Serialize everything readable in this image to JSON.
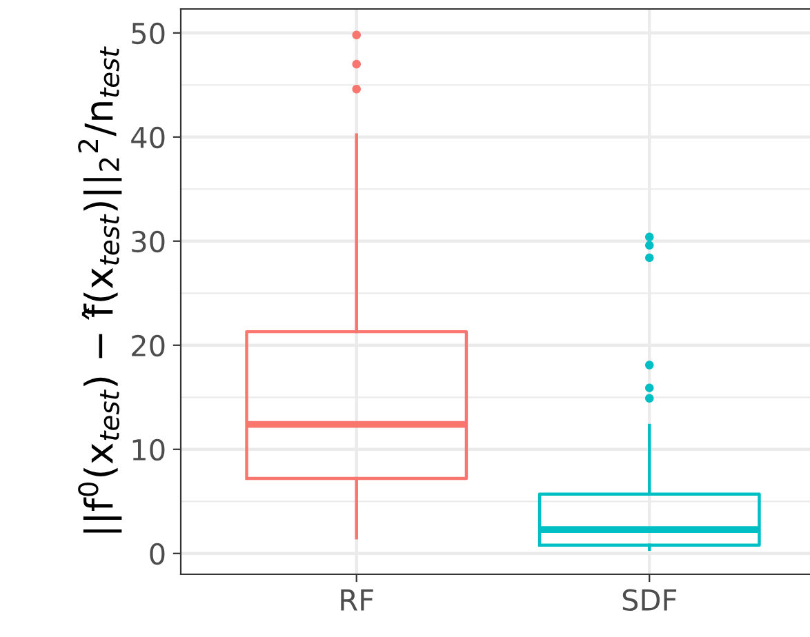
{
  "chart_data": {
    "type": "box",
    "ylabel": "||f$^{0}$(x$_{test}$) − f̂(x$_{test}$)||$_{2}$$^{2}$/n$_{test}$",
    "categories": [
      "RF",
      "SDF"
    ],
    "series": [
      {
        "color": "#f8766d",
        "boxes": [
          {
            "low": 1.5,
            "q1": 7.2,
            "median": 12.4,
            "q3": 21.3,
            "high": 40.2,
            "outliers": [
              44.6,
              47.0,
              49.8
            ]
          },
          null
        ]
      },
      {
        "color": "#00bfc4",
        "boxes": [
          null,
          {
            "low": 0.4,
            "q1": 0.8,
            "median": 2.3,
            "q3": 5.7,
            "high": 12.3,
            "outliers": [
              14.9,
              15.9,
              18.1,
              28.4,
              29.6,
              30.4
            ]
          }
        ]
      }
    ],
    "ylim": [
      -2,
      52.3
    ],
    "yticks": [
      0,
      10,
      20,
      30,
      40,
      50
    ],
    "grid": true,
    "legend": false
  }
}
